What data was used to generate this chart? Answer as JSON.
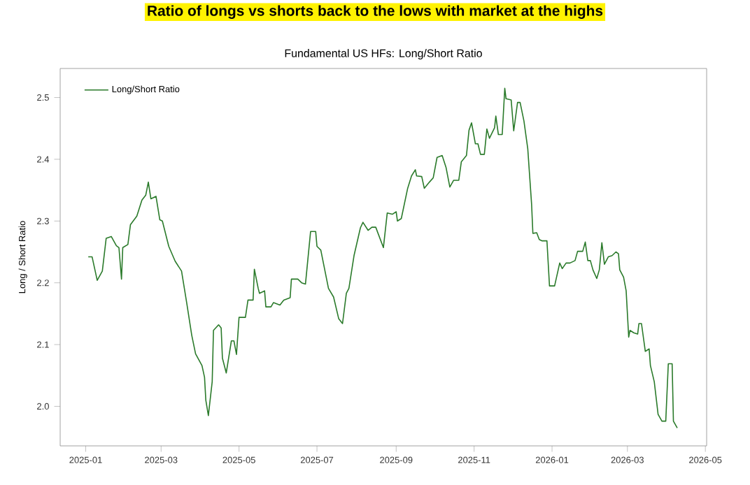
{
  "chart_data": {
    "type": "line",
    "title": "Ratio of longs vs shorts back to the lows with market at the highs",
    "subtitle": "Fundamental US HFs: Long/Short Ratio",
    "ylabel": "Long / Short Ratio",
    "x": [
      "2025-01-03",
      "2025-01-06",
      "2025-01-10",
      "2025-01-14",
      "2025-01-17",
      "2025-01-21",
      "2025-01-25",
      "2025-01-27",
      "2025-01-29",
      "2025-01-30",
      "2025-02-03",
      "2025-02-05",
      "2025-02-10",
      "2025-02-14",
      "2025-02-17",
      "2025-02-19",
      "2025-02-21",
      "2025-02-25",
      "2025-02-28",
      "2025-03-02",
      "2025-03-07",
      "2025-03-12",
      "2025-03-17",
      "2025-03-21",
      "2025-03-25",
      "2025-03-28",
      "2025-04-02",
      "2025-04-04",
      "2025-04-05",
      "2025-04-07",
      "2025-04-10",
      "2025-04-11",
      "2025-04-15",
      "2025-04-17",
      "2025-04-18",
      "2025-04-21",
      "2025-04-25",
      "2025-04-27",
      "2025-04-29",
      "2025-05-01",
      "2025-05-06",
      "2025-05-08",
      "2025-05-12",
      "2025-05-13",
      "2025-05-16",
      "2025-05-17",
      "2025-05-21",
      "2025-05-22",
      "2025-05-26",
      "2025-05-28",
      "2025-06-02",
      "2025-06-05",
      "2025-06-10",
      "2025-06-11",
      "2025-06-16",
      "2025-06-19",
      "2025-06-22",
      "2025-06-26",
      "2025-06-30",
      "2025-07-01",
      "2025-07-04",
      "2025-07-10",
      "2025-07-14",
      "2025-07-18",
      "2025-07-21",
      "2025-07-24",
      "2025-07-26",
      "2025-07-30",
      "2025-08-04",
      "2025-08-06",
      "2025-08-10",
      "2025-08-13",
      "2025-08-16",
      "2025-08-22",
      "2025-08-25",
      "2025-08-29",
      "2025-09-01",
      "2025-09-02",
      "2025-09-05",
      "2025-09-10",
      "2025-09-13",
      "2025-09-16",
      "2025-09-17",
      "2025-09-21",
      "2025-09-23",
      "2025-09-27",
      "2025-09-30",
      "2025-10-03",
      "2025-10-07",
      "2025-10-10",
      "2025-10-13",
      "2025-10-16",
      "2025-10-20",
      "2025-10-22",
      "2025-10-26",
      "2025-10-28",
      "2025-10-30",
      "2025-11-02",
      "2025-11-04",
      "2025-11-06",
      "2025-11-09",
      "2025-11-11",
      "2025-11-13",
      "2025-11-17",
      "2025-11-18",
      "2025-11-20",
      "2025-11-23",
      "2025-11-25",
      "2025-11-26",
      "2025-11-30",
      "2025-12-02",
      "2025-12-05",
      "2025-12-07",
      "2025-12-10",
      "2025-12-13",
      "2025-12-16",
      "2025-12-17",
      "2025-12-20",
      "2025-12-22",
      "2025-12-24",
      "2025-12-28",
      "2025-12-30",
      "2026-01-03",
      "2026-01-07",
      "2026-01-09",
      "2026-01-12",
      "2026-01-15",
      "2026-01-19",
      "2026-01-21",
      "2026-01-25",
      "2026-01-27",
      "2026-01-29",
      "2026-01-31",
      "2026-02-02",
      "2026-02-05",
      "2026-02-07",
      "2026-02-09",
      "2026-02-11",
      "2026-02-14",
      "2026-02-17",
      "2026-02-20",
      "2026-02-22",
      "2026-02-23",
      "2026-02-26",
      "2026-02-28",
      "2026-03-02",
      "2026-03-03",
      "2026-03-06",
      "2026-03-09",
      "2026-03-10",
      "2026-03-12",
      "2026-03-15",
      "2026-03-18",
      "2026-03-19",
      "2026-03-22",
      "2026-03-25",
      "2026-03-28",
      "2026-03-31",
      "2026-04-02",
      "2026-04-05",
      "2026-04-06",
      "2026-04-09"
    ],
    "series": [
      {
        "name": "Long/Short Ratio",
        "color": "#2a7a2a",
        "values": [
          2.242,
          2.242,
          2.204,
          2.219,
          2.272,
          2.275,
          2.26,
          2.257,
          2.206,
          2.257,
          2.262,
          2.294,
          2.308,
          2.334,
          2.342,
          2.363,
          2.336,
          2.34,
          2.302,
          2.3,
          2.259,
          2.235,
          2.219,
          2.168,
          2.115,
          2.085,
          2.066,
          2.047,
          2.01,
          1.985,
          2.04,
          2.123,
          2.132,
          2.127,
          2.078,
          2.054,
          2.106,
          2.106,
          2.084,
          2.144,
          2.144,
          2.172,
          2.172,
          2.222,
          2.191,
          2.183,
          2.187,
          2.161,
          2.161,
          2.168,
          2.164,
          2.172,
          2.176,
          2.206,
          2.206,
          2.2,
          2.198,
          2.283,
          2.283,
          2.259,
          2.253,
          2.191,
          2.177,
          2.142,
          2.134,
          2.183,
          2.191,
          2.244,
          2.289,
          2.298,
          2.285,
          2.29,
          2.29,
          2.257,
          2.313,
          2.311,
          2.315,
          2.3,
          2.304,
          2.353,
          2.373,
          2.383,
          2.373,
          2.372,
          2.353,
          2.363,
          2.37,
          2.403,
          2.406,
          2.387,
          2.355,
          2.366,
          2.366,
          2.396,
          2.406,
          2.447,
          2.459,
          2.425,
          2.425,
          2.408,
          2.408,
          2.449,
          2.434,
          2.451,
          2.47,
          2.44,
          2.44,
          2.515,
          2.498,
          2.496,
          2.446,
          2.492,
          2.492,
          2.462,
          2.417,
          2.327,
          2.28,
          2.281,
          2.27,
          2.268,
          2.268,
          2.195,
          2.195,
          2.232,
          2.223,
          2.232,
          2.232,
          2.236,
          2.251,
          2.251,
          2.266,
          2.236,
          2.236,
          2.221,
          2.207,
          2.221,
          2.265,
          2.23,
          2.242,
          2.244,
          2.25,
          2.247,
          2.221,
          2.209,
          2.187,
          2.112,
          2.123,
          2.119,
          2.117,
          2.134,
          2.134,
          2.089,
          2.093,
          2.066,
          2.04,
          1.987,
          1.976,
          1.976,
          2.069,
          2.069,
          1.976,
          1.965
        ]
      }
    ],
    "xlim": [
      "2024-12-12",
      "2026-05-02"
    ],
    "ylim": [
      1.936,
      2.547
    ],
    "xticks": [
      {
        "value": "2025-01-01",
        "label": "2025-01"
      },
      {
        "value": "2025-03-01",
        "label": "2025-03"
      },
      {
        "value": "2025-05-01",
        "label": "2025-05"
      },
      {
        "value": "2025-07-01",
        "label": "2025-07"
      },
      {
        "value": "2025-09-01",
        "label": "2025-09"
      },
      {
        "value": "2025-11-01",
        "label": "2025-11"
      },
      {
        "value": "2026-01-01",
        "label": "2026-01"
      },
      {
        "value": "2026-03-01",
        "label": "2026-03"
      },
      {
        "value": "2026-05-01",
        "label": "2026-05"
      }
    ],
    "yticks": [
      {
        "value": 2.0,
        "label": "2.0"
      },
      2.1,
      2.2,
      2.3,
      2.4,
      2.5
    ],
    "legend": "top left",
    "grid": false,
    "marker": "none",
    "line_style": "solid"
  }
}
